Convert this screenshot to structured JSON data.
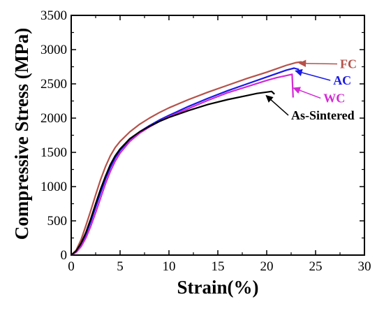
{
  "chart_data": {
    "type": "line",
    "title": "",
    "xlabel": "Strain(%)",
    "ylabel": "Compressive Stress (MPa)",
    "xlim": [
      0,
      30
    ],
    "ylim": [
      0,
      3500
    ],
    "x_ticks": [
      "0",
      "5",
      "10",
      "15",
      "20",
      "25",
      "30"
    ],
    "y_ticks": [
      "0",
      "500",
      "1000",
      "1500",
      "2000",
      "2500",
      "3000",
      "3500"
    ],
    "grid": false,
    "legend": "inline labels with arrows near curve ends",
    "series": [
      {
        "name": "FC",
        "color": "#b5524a",
        "label_pos": [
          27.5,
          2730
        ],
        "arrow_tip": [
          23.2,
          2810
        ],
        "points": [
          [
            0,
            0
          ],
          [
            0.5,
            70
          ],
          [
            1,
            220
          ],
          [
            1.5,
            430
          ],
          [
            2,
            650
          ],
          [
            2.5,
            880
          ],
          [
            3,
            1100
          ],
          [
            3.5,
            1290
          ],
          [
            4,
            1450
          ],
          [
            4.5,
            1570
          ],
          [
            5,
            1660
          ],
          [
            6,
            1800
          ],
          [
            7,
            1910
          ],
          [
            8,
            2000
          ],
          [
            9,
            2080
          ],
          [
            10,
            2150
          ],
          [
            12,
            2270
          ],
          [
            14,
            2380
          ],
          [
            16,
            2480
          ],
          [
            18,
            2580
          ],
          [
            20,
            2670
          ],
          [
            21,
            2720
          ],
          [
            22,
            2770
          ],
          [
            23,
            2810
          ],
          [
            23.5,
            2820
          ],
          [
            24,
            2800
          ]
        ]
      },
      {
        "name": "AC",
        "color": "#1a1ae6",
        "label_pos": [
          26.8,
          2490
        ],
        "arrow_tip": [
          22.8,
          2700
        ],
        "points": [
          [
            0,
            0
          ],
          [
            0.5,
            50
          ],
          [
            1,
            150
          ],
          [
            1.5,
            300
          ],
          [
            2,
            490
          ],
          [
            2.5,
            700
          ],
          [
            3,
            910
          ],
          [
            3.5,
            1110
          ],
          [
            4,
            1280
          ],
          [
            4.5,
            1420
          ],
          [
            5,
            1530
          ],
          [
            6,
            1690
          ],
          [
            7,
            1800
          ],
          [
            8,
            1890
          ],
          [
            9,
            1970
          ],
          [
            10,
            2040
          ],
          [
            12,
            2170
          ],
          [
            14,
            2290
          ],
          [
            16,
            2400
          ],
          [
            18,
            2500
          ],
          [
            20,
            2600
          ],
          [
            21,
            2650
          ],
          [
            22,
            2700
          ],
          [
            22.8,
            2730
          ],
          [
            23.3,
            2710
          ]
        ]
      },
      {
        "name": "WC",
        "color": "#d42ad4",
        "label_pos": [
          25.8,
          2230
        ],
        "arrow_tip": [
          22.6,
          2450
        ],
        "points": [
          [
            0,
            0
          ],
          [
            0.5,
            40
          ],
          [
            1,
            120
          ],
          [
            1.5,
            250
          ],
          [
            2,
            420
          ],
          [
            2.5,
            620
          ],
          [
            3,
            830
          ],
          [
            3.5,
            1040
          ],
          [
            4,
            1220
          ],
          [
            4.5,
            1370
          ],
          [
            5,
            1490
          ],
          [
            6,
            1660
          ],
          [
            7,
            1780
          ],
          [
            8,
            1870
          ],
          [
            9,
            1950
          ],
          [
            10,
            2020
          ],
          [
            12,
            2140
          ],
          [
            14,
            2260
          ],
          [
            16,
            2370
          ],
          [
            18,
            2460
          ],
          [
            20,
            2550
          ],
          [
            21,
            2590
          ],
          [
            22,
            2620
          ],
          [
            22.6,
            2640
          ],
          [
            22.7,
            2300
          ]
        ]
      },
      {
        "name": "As-Sintered",
        "color": "#000000",
        "label_pos": [
          22.5,
          1980
        ],
        "arrow_tip": [
          19.8,
          2340
        ],
        "points": [
          [
            0,
            0
          ],
          [
            0.5,
            60
          ],
          [
            1,
            170
          ],
          [
            1.5,
            330
          ],
          [
            2,
            530
          ],
          [
            2.5,
            750
          ],
          [
            3,
            960
          ],
          [
            3.5,
            1150
          ],
          [
            4,
            1320
          ],
          [
            4.5,
            1450
          ],
          [
            5,
            1550
          ],
          [
            6,
            1700
          ],
          [
            7,
            1800
          ],
          [
            8,
            1880
          ],
          [
            9,
            1950
          ],
          [
            10,
            2010
          ],
          [
            12,
            2110
          ],
          [
            14,
            2200
          ],
          [
            16,
            2270
          ],
          [
            18,
            2330
          ],
          [
            19,
            2360
          ],
          [
            20,
            2380
          ],
          [
            20.5,
            2390
          ],
          [
            20.8,
            2350
          ]
        ]
      }
    ]
  }
}
